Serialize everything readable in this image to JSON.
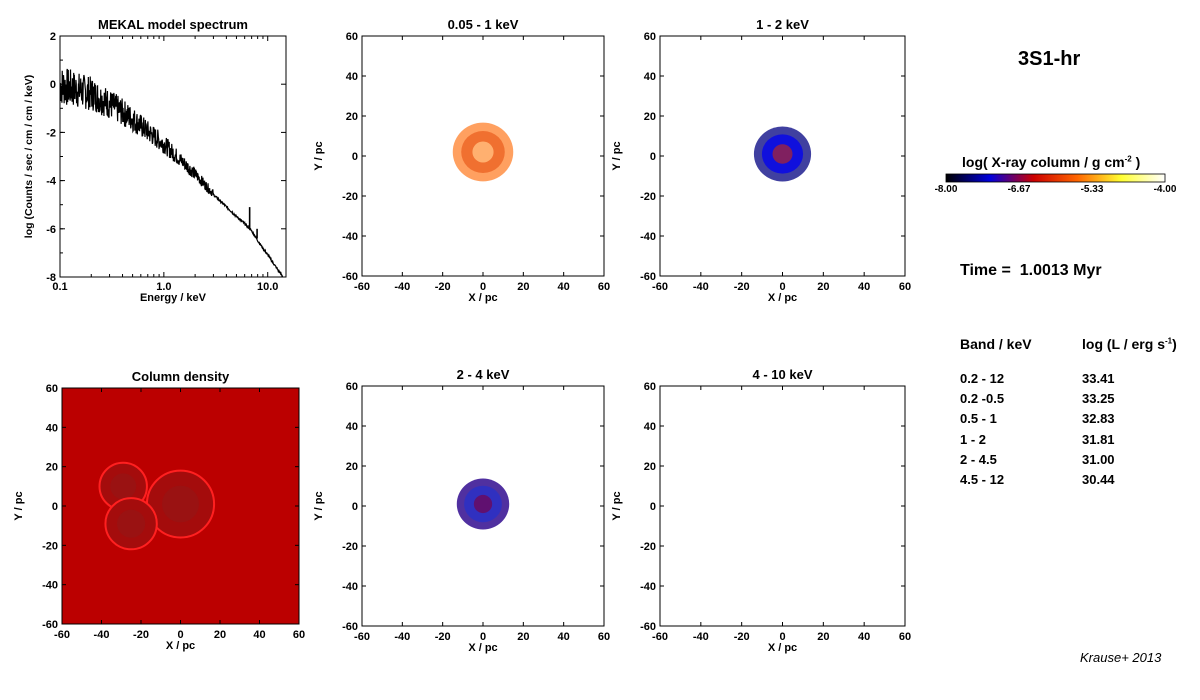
{
  "run_title": "3S1-hr",
  "time": {
    "label": "Time =",
    "value": "1.0013 Myr"
  },
  "colorbar": {
    "title_main": "log( X-ray column / g cm",
    "title_sup": "-2",
    "title_end": " )",
    "ticks": [
      "-8.00",
      "-6.67",
      "-5.33",
      "-4.00"
    ],
    "colors": [
      "#000000",
      "#0000dd",
      "#cc0000",
      "#ff6600",
      "#ffff33",
      "#ffffff"
    ]
  },
  "luminosity_table": {
    "band_header": "Band / keV",
    "lum_header_main": "log (L / erg s",
    "lum_header_sup": "-1",
    "lum_header_end": ")",
    "rows": [
      {
        "band": "0.2 - 12",
        "value": "33.41"
      },
      {
        "band": "0.2  -0.5",
        "value": "33.25"
      },
      {
        "band": "0.5 - 1",
        "value": "32.83"
      },
      {
        "band": "1 - 2",
        "value": "31.81"
      },
      {
        "band": "2 - 4.5",
        "value": "31.00"
      },
      {
        "band": "4.5 - 12",
        "value": "30.44"
      }
    ]
  },
  "credit": "Krause+ 2013",
  "chart_data": [
    {
      "type": "line",
      "title": "MEKAL model spectrum",
      "xlabel": "Energy / keV",
      "ylabel": "log (Counts / sec / cm / cm / keV)",
      "xscale": "log",
      "xlim": [
        0.1,
        15
      ],
      "ylim": [
        -8,
        2
      ],
      "xticks": [
        "0.1",
        "1.0",
        "10.0"
      ],
      "yticks": [
        "2",
        "0",
        "-2",
        "-4",
        "-6",
        "-8"
      ],
      "series": [
        {
          "x": [
            0.1,
            0.2,
            0.3,
            0.5,
            0.7,
            1.0,
            1.5,
            2.0,
            3.0,
            4.0,
            5.0,
            6.0,
            6.7,
            7.0,
            8.0,
            10.0,
            12.0,
            14.0
          ],
          "y": [
            -0.3,
            -0.6,
            -1.0,
            -1.6,
            -2.1,
            -2.6,
            -3.3,
            -3.8,
            -4.6,
            -5.1,
            -5.5,
            -5.8,
            -6.0,
            -6.1,
            -6.5,
            -7.1,
            -7.6,
            -8.0
          ]
        }
      ],
      "lines": [
        {
          "x": 6.7,
          "y_base": -6.0,
          "y_peak": -5.1
        },
        {
          "x": 7.9,
          "y_base": -6.4,
          "y_peak": -6.0
        }
      ],
      "grid": false
    },
    {
      "type": "heatmap",
      "title": "0.05 - 1 keV",
      "xlabel": "X / pc",
      "ylabel": "Y / pc",
      "xlim": [
        -60,
        60
      ],
      "ylim": [
        -60,
        60
      ],
      "ticks": [
        "-60",
        "-40",
        "-20",
        "0",
        "20",
        "40",
        "60"
      ],
      "colormap": "X-ray column",
      "sources": [
        {
          "cx": 0,
          "cy": 2,
          "r": 15,
          "colors": [
            "#ffa060",
            "#f07030",
            "#ffb070"
          ]
        }
      ]
    },
    {
      "type": "heatmap",
      "title": "1 - 2 keV",
      "xlabel": "X / pc",
      "ylabel": "Y / pc",
      "xlim": [
        -60,
        60
      ],
      "ylim": [
        -60,
        60
      ],
      "ticks": [
        "-60",
        "-40",
        "-20",
        "0",
        "20",
        "40",
        "60"
      ],
      "colormap": "X-ray column",
      "sources": [
        {
          "cx": 0,
          "cy": 1,
          "r": 14,
          "colors": [
            "#4040a0",
            "#1010dd",
            "#802060"
          ]
        }
      ]
    },
    {
      "type": "heatmap",
      "title": "Column density",
      "xlabel": "X / pc",
      "ylabel": "Y / pc",
      "xlim": [
        -60,
        60
      ],
      "ylim": [
        -60,
        60
      ],
      "ticks": [
        "-60",
        "-40",
        "-20",
        "0",
        "20",
        "40",
        "60"
      ],
      "background": "#bb0000",
      "bubbles": [
        {
          "cx": 0,
          "cy": 1,
          "r": 17
        },
        {
          "cx": -29,
          "cy": 10,
          "r": 12
        },
        {
          "cx": -25,
          "cy": -9,
          "r": 13
        }
      ]
    },
    {
      "type": "heatmap",
      "title": "2 - 4 keV",
      "xlabel": "X / pc",
      "ylabel": "Y / pc",
      "xlim": [
        -60,
        60
      ],
      "ylim": [
        -60,
        60
      ],
      "ticks": [
        "-60",
        "-40",
        "-20",
        "0",
        "20",
        "40",
        "60"
      ],
      "colormap": "X-ray column",
      "sources": [
        {
          "cx": 0,
          "cy": 1,
          "r": 13,
          "colors": [
            "#5030a0",
            "#3030c0",
            "#601070"
          ]
        }
      ]
    },
    {
      "type": "heatmap",
      "title": "4 - 10 keV",
      "xlabel": "X / pc",
      "ylabel": "Y / pc",
      "xlim": [
        -60,
        60
      ],
      "ylim": [
        -60,
        60
      ],
      "ticks": [
        "-60",
        "-40",
        "-20",
        "0",
        "20",
        "40",
        "60"
      ],
      "colormap": "X-ray column",
      "sources": []
    }
  ]
}
